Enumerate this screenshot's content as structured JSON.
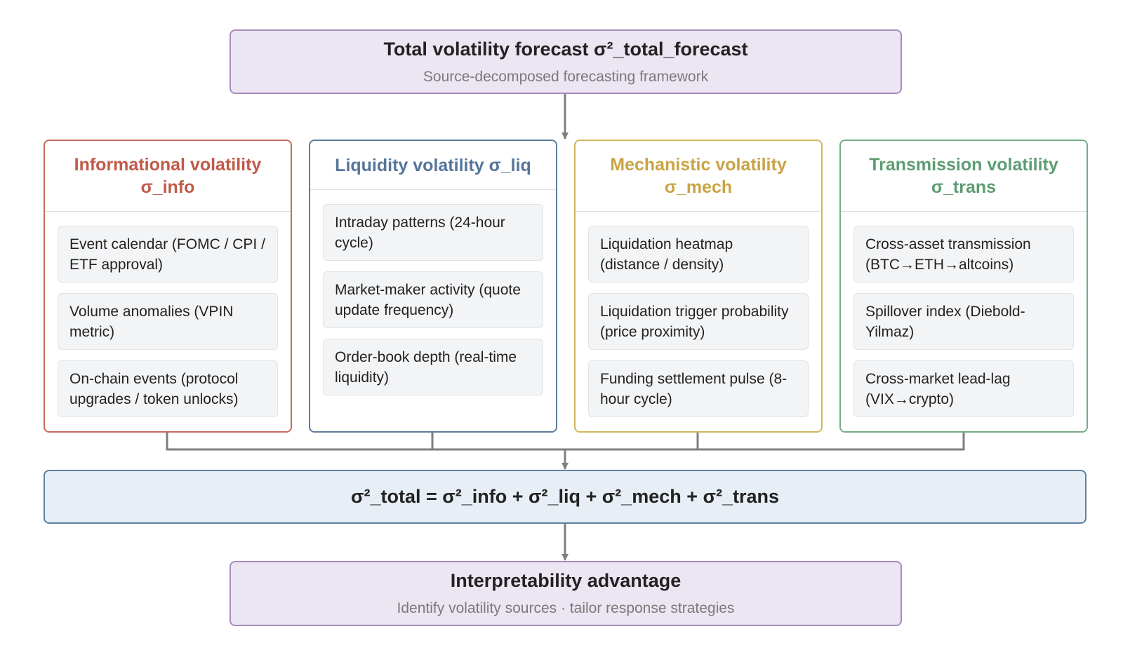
{
  "top": {
    "title": "Total volatility forecast σ²_total_forecast",
    "subtitle": "Source-decomposed forecasting framework"
  },
  "cards": [
    {
      "title": "Informational volatility σ_info",
      "color": "#c05a48",
      "items": [
        "Event calendar (FOMC / CPI / ETF approval)",
        "Volume anomalies (VPIN metric)",
        "On-chain events (protocol upgrades / token unlocks)"
      ]
    },
    {
      "title": "Liquidity volatility σ_liq",
      "color": "#557699",
      "items": [
        "Intraday patterns (24-hour cycle)",
        "Market-maker activity (quote update frequency)",
        "Order-book depth (real-time liquidity)"
      ]
    },
    {
      "title": "Mechanistic volatility σ_mech",
      "color": "#c9a444",
      "items": [
        "Liquidation heatmap (distance / density)",
        "Liquidation trigger probability (price proximity)",
        "Funding settlement pulse (8-hour cycle)"
      ]
    },
    {
      "title": "Transmission volatility σ_trans",
      "color": "#5e9c73",
      "items": [
        "Cross-asset transmission (BTC→ETH→altcoins)",
        "Spillover index (Diebold-Yilmaz)",
        "Cross-market lead-lag (VIX→crypto)"
      ]
    }
  ],
  "formula": "σ²_total = σ²_info + σ²_liq + σ²_mech + σ²_trans",
  "bottom": {
    "title": "Interpretability advantage",
    "subtitle": "Identify volatility sources · tailor response strategies"
  }
}
